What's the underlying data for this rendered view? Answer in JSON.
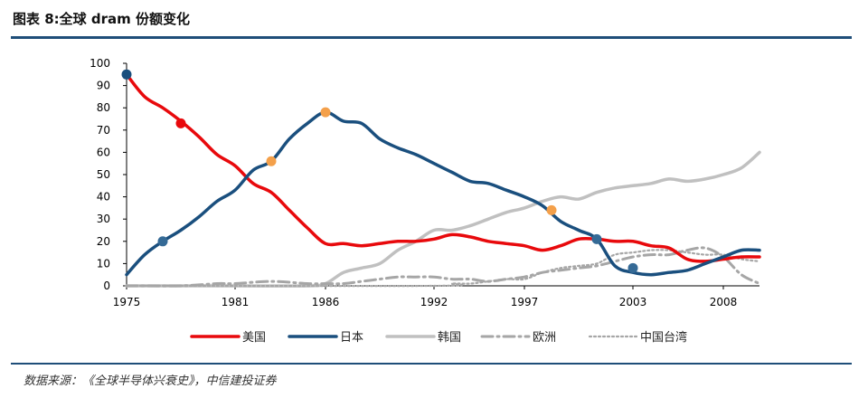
{
  "title": "图表 8:全球 dram 份额变化",
  "source": "数据来源：《全球半导体兴衰史》，中信建投证券",
  "chart_data": {
    "type": "line",
    "xlim": [
      1975,
      2010
    ],
    "ylim": [
      0,
      100
    ],
    "x_ticks": [
      1975,
      1981,
      1986,
      1992,
      1997,
      2003,
      2008
    ],
    "y_ticks": [
      0,
      10,
      20,
      30,
      40,
      50,
      60,
      70,
      80,
      90,
      100
    ],
    "legend_position": "bottom",
    "series": [
      {
        "name": "美国",
        "color": "#e8090c",
        "dash": "solid",
        "points": [
          [
            1975,
            95
          ],
          [
            1976,
            85
          ],
          [
            1977,
            80
          ],
          [
            1978,
            74
          ],
          [
            1979,
            67
          ],
          [
            1980,
            59
          ],
          [
            1981,
            54
          ],
          [
            1982,
            46
          ],
          [
            1983,
            42
          ],
          [
            1984,
            34
          ],
          [
            1985,
            26
          ],
          [
            1986,
            19
          ],
          [
            1987,
            19
          ],
          [
            1988,
            18
          ],
          [
            1989,
            19
          ],
          [
            1990,
            20
          ],
          [
            1991,
            20
          ],
          [
            1992,
            21
          ],
          [
            1993,
            23
          ],
          [
            1994,
            22
          ],
          [
            1995,
            20
          ],
          [
            1996,
            19
          ],
          [
            1997,
            18
          ],
          [
            1998,
            16
          ],
          [
            1999,
            18
          ],
          [
            2000,
            21
          ],
          [
            2001,
            21
          ],
          [
            2002,
            20
          ],
          [
            2003,
            20
          ],
          [
            2004,
            18
          ],
          [
            2005,
            17
          ],
          [
            2006,
            12
          ],
          [
            2007,
            11
          ],
          [
            2008,
            12
          ],
          [
            2009,
            13
          ],
          [
            2010,
            13
          ]
        ]
      },
      {
        "name": "日本",
        "color": "#1a4f7e",
        "dash": "solid",
        "points": [
          [
            1975,
            5
          ],
          [
            1976,
            14
          ],
          [
            1977,
            20
          ],
          [
            1978,
            25
          ],
          [
            1979,
            31
          ],
          [
            1980,
            38
          ],
          [
            1981,
            43
          ],
          [
            1982,
            52
          ],
          [
            1983,
            56
          ],
          [
            1984,
            66
          ],
          [
            1985,
            73
          ],
          [
            1986,
            78
          ],
          [
            1987,
            74
          ],
          [
            1988,
            73
          ],
          [
            1989,
            66
          ],
          [
            1990,
            62
          ],
          [
            1991,
            59
          ],
          [
            1992,
            55
          ],
          [
            1993,
            51
          ],
          [
            1994,
            47
          ],
          [
            1995,
            46
          ],
          [
            1996,
            43
          ],
          [
            1997,
            40
          ],
          [
            1998,
            36
          ],
          [
            1999,
            29
          ],
          [
            2000,
            25
          ],
          [
            2001,
            21
          ],
          [
            2002,
            9
          ],
          [
            2003,
            6
          ],
          [
            2004,
            5
          ],
          [
            2005,
            6
          ],
          [
            2006,
            7
          ],
          [
            2007,
            10
          ],
          [
            2008,
            13
          ],
          [
            2009,
            16
          ],
          [
            2010,
            16
          ]
        ]
      },
      {
        "name": "韩国",
        "color": "#c0c0c0",
        "dash": "solid",
        "points": [
          [
            1975,
            0
          ],
          [
            1981,
            0
          ],
          [
            1985,
            0
          ],
          [
            1986,
            1
          ],
          [
            1987,
            6
          ],
          [
            1988,
            8
          ],
          [
            1989,
            10
          ],
          [
            1990,
            16
          ],
          [
            1991,
            20
          ],
          [
            1992,
            25
          ],
          [
            1993,
            25
          ],
          [
            1994,
            27
          ],
          [
            1995,
            30
          ],
          [
            1996,
            33
          ],
          [
            1997,
            35
          ],
          [
            1998,
            38
          ],
          [
            1999,
            40
          ],
          [
            2000,
            39
          ],
          [
            2001,
            42
          ],
          [
            2002,
            44
          ],
          [
            2003,
            45
          ],
          [
            2004,
            46
          ],
          [
            2005,
            48
          ],
          [
            2006,
            47
          ],
          [
            2007,
            48
          ],
          [
            2008,
            50
          ],
          [
            2009,
            53
          ],
          [
            2010,
            60
          ]
        ]
      },
      {
        "name": "欧洲",
        "color": "#a6a6a6",
        "dash": "dashdot",
        "points": [
          [
            1975,
            0
          ],
          [
            1976,
            0
          ],
          [
            1978,
            0
          ],
          [
            1980,
            1
          ],
          [
            1981,
            1
          ],
          [
            1983,
            2
          ],
          [
            1985,
            1
          ],
          [
            1986,
            1
          ],
          [
            1987,
            1
          ],
          [
            1988,
            2
          ],
          [
            1989,
            3
          ],
          [
            1990,
            4
          ],
          [
            1991,
            4
          ],
          [
            1992,
            4
          ],
          [
            1993,
            3
          ],
          [
            1994,
            3
          ],
          [
            1995,
            2
          ],
          [
            1996,
            3
          ],
          [
            1997,
            4
          ],
          [
            1998,
            6
          ],
          [
            1999,
            7
          ],
          [
            2000,
            8
          ],
          [
            2001,
            9
          ],
          [
            2002,
            11
          ],
          [
            2003,
            13
          ],
          [
            2004,
            14
          ],
          [
            2005,
            14
          ],
          [
            2006,
            16
          ],
          [
            2007,
            17
          ],
          [
            2008,
            13
          ],
          [
            2009,
            5
          ],
          [
            2010,
            1
          ]
        ]
      },
      {
        "name": "中国台湾",
        "color": "#a6a6a6",
        "dash": "dotted",
        "points": [
          [
            1975,
            0
          ],
          [
            1992,
            0
          ],
          [
            1993,
            1
          ],
          [
            1994,
            1
          ],
          [
            1995,
            2
          ],
          [
            1996,
            3
          ],
          [
            1997,
            3
          ],
          [
            1998,
            6
          ],
          [
            1999,
            8
          ],
          [
            2000,
            9
          ],
          [
            2001,
            10
          ],
          [
            2002,
            14
          ],
          [
            2003,
            15
          ],
          [
            2004,
            16
          ],
          [
            2005,
            16
          ],
          [
            2006,
            15
          ],
          [
            2007,
            14
          ],
          [
            2008,
            14
          ],
          [
            2009,
            12
          ],
          [
            2010,
            11
          ]
        ]
      }
    ],
    "markers": [
      {
        "x": 1975,
        "y": 95,
        "color": "#1a4f7e"
      },
      {
        "x": 1977,
        "y": 20,
        "color": "#356a96"
      },
      {
        "x": 1978,
        "y": 73,
        "color": "#e8090c"
      },
      {
        "x": 1983,
        "y": 56,
        "color": "#f4a04a"
      },
      {
        "x": 1986,
        "y": 78,
        "color": "#f4a04a"
      },
      {
        "x": 1998.5,
        "y": 34,
        "color": "#f4a04a"
      },
      {
        "x": 2001,
        "y": 21,
        "color": "#356a96"
      },
      {
        "x": 2003,
        "y": 8,
        "color": "#356a96"
      }
    ]
  }
}
